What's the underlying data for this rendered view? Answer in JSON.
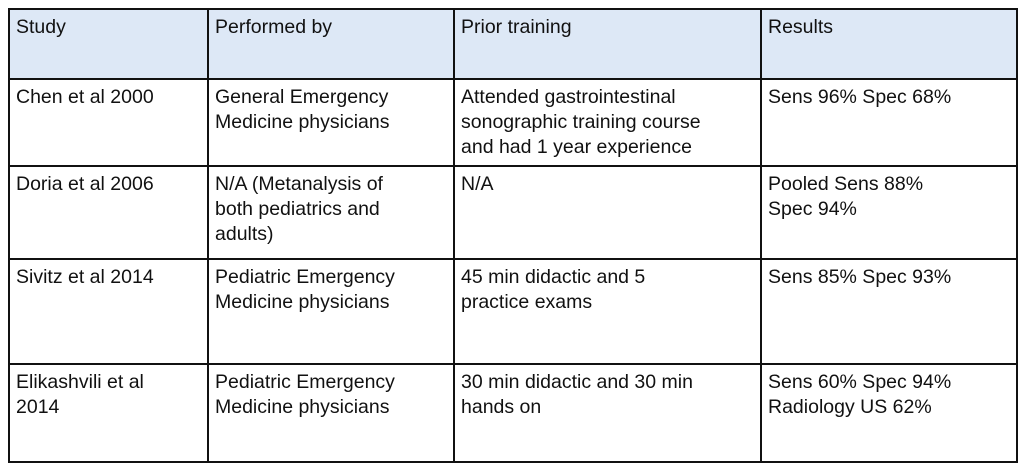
{
  "table": {
    "headers": [
      "Study",
      "Performed by",
      "Prior training",
      "Results"
    ],
    "header_bg": "#dde8f6",
    "rows": [
      {
        "study": [
          "Chen et al 2000"
        ],
        "performed_by": [
          "General Emergency",
          "Medicine physicians"
        ],
        "prior_training": [
          "Attended gastrointestinal",
          "sonographic training course",
          "and had 1 year experience"
        ],
        "results": [
          "Sens 96% Spec 68%"
        ]
      },
      {
        "study": [
          "Doria et al 2006"
        ],
        "performed_by": [
          "N/A (Metanalysis of",
          "both pediatrics and",
          "adults)"
        ],
        "prior_training": [
          "N/A"
        ],
        "results": [
          "Pooled Sens 88%",
          "Spec 94%"
        ]
      },
      {
        "study": [
          "Sivitz et al 2014"
        ],
        "performed_by": [
          "Pediatric Emergency",
          "Medicine physicians"
        ],
        "prior_training": [
          "45 min didactic and 5",
          "practice exams"
        ],
        "results": [
          "Sens 85% Spec 93%"
        ]
      },
      {
        "study": [
          "Elikashvili et al",
          "2014"
        ],
        "performed_by": [
          "Pediatric Emergency",
          "Medicine physicians"
        ],
        "prior_training": [
          "30 min didactic and 30 min",
          "hands on"
        ],
        "results": [
          "Sens 60% Spec 94%",
          "Radiology US 62%"
        ]
      }
    ]
  }
}
